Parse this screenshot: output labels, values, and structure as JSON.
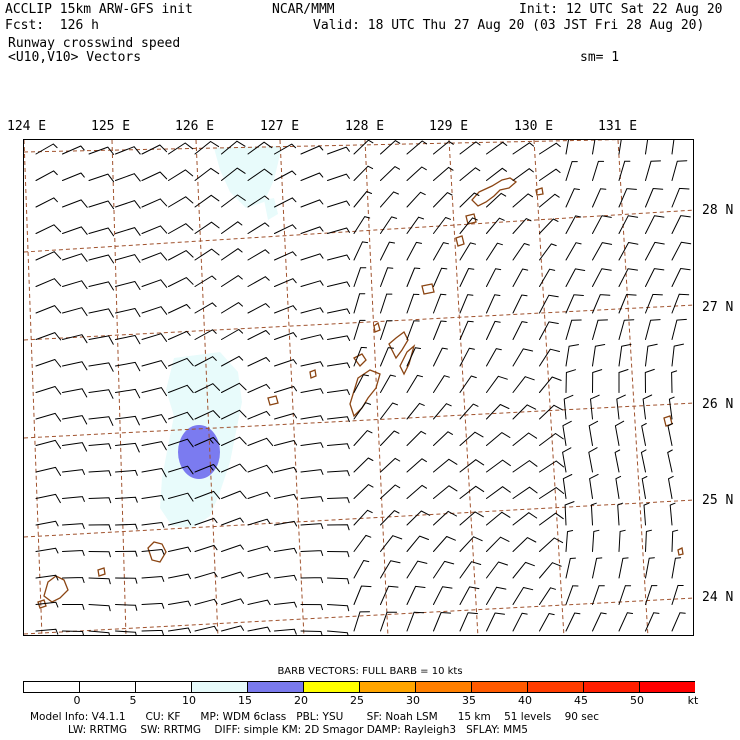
{
  "header": {
    "model": "ACCLIP 15km ARW-GFS init",
    "org": "NCAR/MMM",
    "init": "Init: 12 UTC Sat 22 Aug 20",
    "fcst": "Fcst:  126 h",
    "valid": "Valid: 18 UTC Thu 27 Aug 20 (03 JST Fri 28 Aug 20)",
    "field": "Runway crosswind speed",
    "vectors": "<U10,V10> Vectors",
    "smooth": "sm= 1"
  },
  "map": {
    "lon_labels": [
      "124 E",
      "125 E",
      "126 E",
      "127 E",
      "128 E",
      "129 E",
      "130 E",
      "131 E"
    ],
    "lat_labels": [
      "28 N",
      "27 N",
      "26 N",
      "25 N",
      "24 N"
    ],
    "grid_color": "#a0522d",
    "coast_color": "#8b4513",
    "wind_color": "#000000",
    "max_region_color": "#7b7bf0",
    "light_region_color": "#e8fbfb"
  },
  "colorbar": {
    "title": "BARB VECTORS:  FULL BARB = 10 kts",
    "labels": [
      "0",
      "5",
      "10",
      "15",
      "20",
      "25",
      "30",
      "35",
      "40",
      "45",
      "50",
      "kt"
    ],
    "colors": [
      "#ffffff",
      "#ffffff",
      "#ffffff",
      "#e6fafa",
      "#7a7aed",
      "#ffff00",
      "#ffa500",
      "#ff7f00",
      "#ff5a00",
      "#ff3c00",
      "#ff1e00",
      "#ff0000"
    ]
  },
  "footer": {
    "line1": "Model Info: V4.1.1      CU: KF      MP: WDM 6class   PBL: YSU       SF: Noah LSM      15 km    51 levels    90 sec",
    "line2": "LW: RRTMG    SW: RRTMG    DIFF: simple KM: 2D Smagor DAMP: Rayleigh3   SFLAY: MM5"
  }
}
